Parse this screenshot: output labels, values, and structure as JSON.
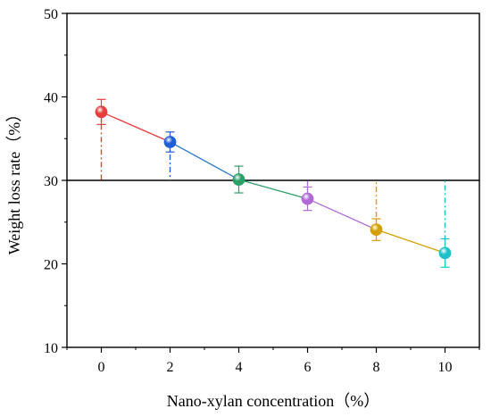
{
  "chart_data": {
    "type": "line",
    "title": "",
    "xlabel": "Nano-xylan concentration（%）",
    "ylabel": "Weight loss rate（%）",
    "xlim": [
      -1.0,
      11.0
    ],
    "ylim": [
      10,
      50
    ],
    "x_ticks": [
      0,
      2,
      4,
      6,
      8,
      10
    ],
    "y_ticks": [
      10,
      20,
      30,
      40,
      50
    ],
    "reference_line": 30,
    "series": [
      {
        "x": [
          0,
          2,
          4,
          6,
          8,
          10
        ],
        "y": [
          38.2,
          34.6,
          30.1,
          27.8,
          24.1,
          21.3
        ],
        "error": [
          1.5,
          1.2,
          1.6,
          1.4,
          1.3,
          1.7
        ],
        "point_colors": [
          "#e83d3d",
          "#1f5fd6",
          "#2aa06a",
          "#b06ad6",
          "#d4a000",
          "#20c0c8"
        ],
        "segment_colors": [
          "#e83d3d",
          "#2a78c8",
          "#2aa06a",
          "#b06ad6",
          "#d4a000"
        ]
      }
    ],
    "grid": false,
    "legend": "none"
  }
}
